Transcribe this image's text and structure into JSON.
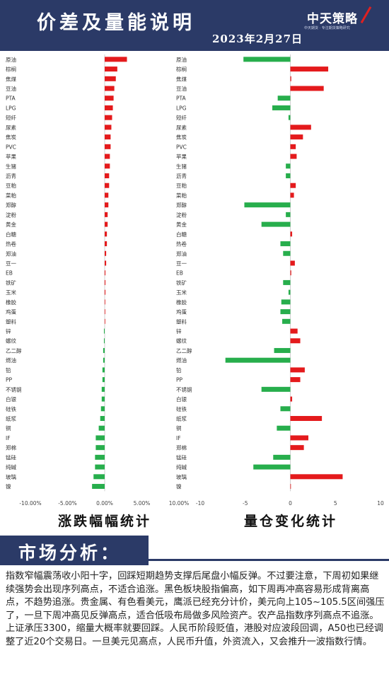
{
  "header": {
    "title": "价差及量能说明",
    "date": "2023年2月27日"
  },
  "logo": {
    "main": "中天策略",
    "sub": "中天期货 · 专注期货策略研究"
  },
  "colors": {
    "header_bg": "#2b3a67",
    "up": "#e41a1c",
    "down": "#27ae4c"
  },
  "left_chart_title": "涨跌幅幅统计",
  "right_chart_title": "量仓变化统计",
  "chart_data": [
    {
      "type": "bar",
      "orientation": "horizontal",
      "xlim": [
        -10,
        10
      ],
      "xticks": [
        "-10.00%",
        "-5.00%",
        "0.00%",
        "5.00%",
        "10.00%"
      ],
      "categories": [
        "原油",
        "棕榈",
        "焦煤",
        "豆油",
        "PTA",
        "LPG",
        "短纤",
        "尿素",
        "焦炭",
        "PVC",
        "苹果",
        "生猪",
        "沥青",
        "豆粕",
        "菜粕",
        "郑醇",
        "淀粉",
        "黄金",
        "白糖",
        "热卷",
        "郑油",
        "豆一",
        "EB",
        "铁矿",
        "玉米",
        "橡胶",
        "鸡蛋",
        "塑料",
        "锌",
        "螺纹",
        "乙二醇",
        "燃油",
        "铅",
        "PP",
        "不锈钢",
        "白银",
        "硅铁",
        "纸浆",
        "铜",
        "IF",
        "郑棉",
        "锰硅",
        "纯碱",
        "玻璃",
        "镍"
      ],
      "values": [
        3.0,
        1.7,
        1.5,
        1.3,
        1.2,
        1.1,
        1.0,
        0.9,
        0.8,
        0.8,
        0.7,
        0.7,
        0.6,
        0.6,
        0.5,
        0.5,
        0.4,
        0.4,
        0.3,
        0.3,
        0.2,
        0.2,
        0.1,
        0.1,
        0.1,
        0.05,
        0.05,
        0.02,
        -0.1,
        -0.1,
        -0.2,
        -0.2,
        -0.3,
        -0.3,
        -0.4,
        -0.4,
        -0.5,
        -0.6,
        -0.8,
        -1.2,
        -1.2,
        -1.3,
        -1.3,
        -1.5,
        -1.7
      ]
    },
    {
      "type": "bar",
      "orientation": "horizontal",
      "xlim": [
        -10,
        10
      ],
      "xticks": [
        "-10",
        "-5",
        "0",
        "5",
        "10"
      ],
      "categories": [
        "原油",
        "棕榈",
        "焦煤",
        "豆油",
        "PTA",
        "LPG",
        "短纤",
        "尿素",
        "焦炭",
        "PVC",
        "苹果",
        "生猪",
        "沥青",
        "豆粕",
        "菜粕",
        "郑醇",
        "淀粉",
        "黄金",
        "白糖",
        "热卷",
        "郑油",
        "豆一",
        "EB",
        "铁矿",
        "玉米",
        "橡胶",
        "鸡蛋",
        "塑料",
        "锌",
        "螺纹",
        "乙二醇",
        "燃油",
        "铅",
        "PP",
        "不锈钢",
        "白银",
        "硅铁",
        "纸浆",
        "铜",
        "IF",
        "郑棉",
        "锰硅",
        "纯碱",
        "玻璃",
        "镍"
      ],
      "values": [
        -5.2,
        4.2,
        0.1,
        3.7,
        -1.4,
        -2.0,
        -0.2,
        2.3,
        1.4,
        0.6,
        0.7,
        -0.5,
        -0.5,
        0.6,
        0.4,
        -5.1,
        -0.5,
        -3.2,
        0.2,
        -1.1,
        -0.8,
        0.5,
        0.1,
        -0.8,
        -0.2,
        -1.0,
        -1.1,
        -0.9,
        0.8,
        1.1,
        -1.8,
        -7.2,
        1.6,
        1.1,
        -3.2,
        0.2,
        -1.1,
        3.5,
        -1.5,
        2.0,
        1.5,
        -1.9,
        -4.1,
        5.8,
        0.05
      ]
    }
  ],
  "section": {
    "title": "市场分析："
  },
  "analysis": {
    "p1": "指数窄幅震荡收小阳十字，回踩短期趋势支撑后尾盘小幅反弹。不过要注意，下周初如果继续强势会出现序列高点，不适合追涨。黑色板块股指偏高，如下周再冲高容易形成背离高点，不趋势追涨。贵金属、有色看美元，鹰派已经充分计价，美元向上105~105.5区间强压了，一旦下周冲高见反弹高点，适合低吸布局做多风险资产。农产品指数序列高点不追涨。",
    "p2": "上证承压3300，缩量大概率就要回踩。人民币阶段贬值，港股对应波段回调，A50也已经调整了近20个交易日。一旦美元见高点，人民币升值，外资流入，又会推升一波指数行情。"
  }
}
